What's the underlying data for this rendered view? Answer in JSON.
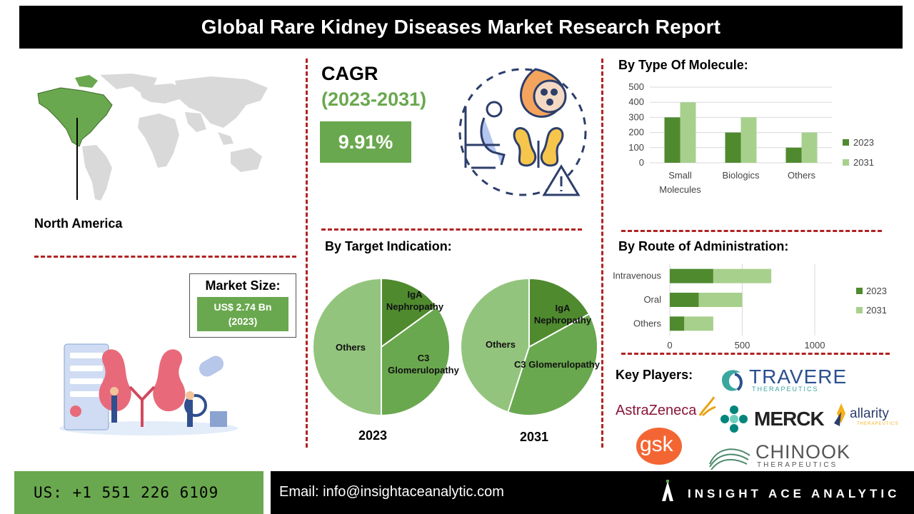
{
  "header": {
    "title": "Global Rare Kidney Diseases Market Research Report"
  },
  "region": {
    "label": "North America"
  },
  "market_size": {
    "title": "Market Size:",
    "value_line1": "US$ 2.74 Bn",
    "value_line2": "(2023)"
  },
  "cagr": {
    "title": "CAGR",
    "period": "(2023-2031)",
    "value": "9.91%"
  },
  "sections": {
    "molecule": "By Type Of Molecule:",
    "indication": "By Target Indication:",
    "route": "By  Route of Administration:",
    "key_players": "Key Players:"
  },
  "colors": {
    "accent": "#6aa84f",
    "dark_green": "#4f8a2f",
    "light_green": "#a8d08d",
    "divider": "#b22222"
  },
  "chart_data": [
    {
      "type": "bar",
      "title": "By Type Of Molecule:",
      "categories": [
        "Small Molecules",
        "Biologics",
        "Others"
      ],
      "series": [
        {
          "name": "2023",
          "values": [
            300,
            200,
            100
          ]
        },
        {
          "name": "2031",
          "values": [
            400,
            300,
            200
          ]
        }
      ],
      "ylim": [
        0,
        500
      ],
      "yticks": [
        0,
        100,
        200,
        300,
        400,
        500
      ],
      "grid": true,
      "legend": "right"
    },
    {
      "type": "pie",
      "title": "By Target Indication:",
      "panels": [
        {
          "label": "2023",
          "slices": [
            {
              "name": "IgA Nephropathy",
              "value": 0.15
            },
            {
              "name": "C3 Glomerulopathy",
              "value": 0.35
            },
            {
              "name": "Others",
              "value": 0.5
            }
          ]
        },
        {
          "label": "2031",
          "slices": [
            {
              "name": "IgA Nephropathy",
              "value": 0.17
            },
            {
              "name": "C3 Glomerulopathy",
              "value": 0.38
            },
            {
              "name": "Others",
              "value": 0.45
            }
          ]
        }
      ]
    },
    {
      "type": "bar",
      "orientation": "horizontal",
      "stacked": true,
      "title": "By  Route of Administration:",
      "categories": [
        "Intravenous",
        "Oral",
        "Others"
      ],
      "series": [
        {
          "name": "2023",
          "values": [
            300,
            200,
            100
          ]
        },
        {
          "name": "2031",
          "values": [
            400,
            300,
            200
          ]
        }
      ],
      "xlim": [
        0,
        1000
      ],
      "xticks": [
        0,
        500,
        1000
      ],
      "grid": true,
      "legend": "right"
    }
  ],
  "key_players": {
    "travere": {
      "name": "TRAVERE",
      "sub": "THERAPEUTICS"
    },
    "astrazeneca": {
      "name": "AstraZeneca"
    },
    "merck": {
      "name": "MERCK"
    },
    "allarity": {
      "name": "allarity",
      "sub": "THERAPEUTICS"
    },
    "gsk": {
      "name": "gsk"
    },
    "chinook": {
      "name": "CHINOOK",
      "sub": "THERAPEUTICS"
    }
  },
  "footer": {
    "phone": "US: +1 551 226 6109",
    "email": "Email: info@insightaceanalytic.com",
    "brand": "INSIGHT ACE ANALYTIC"
  }
}
